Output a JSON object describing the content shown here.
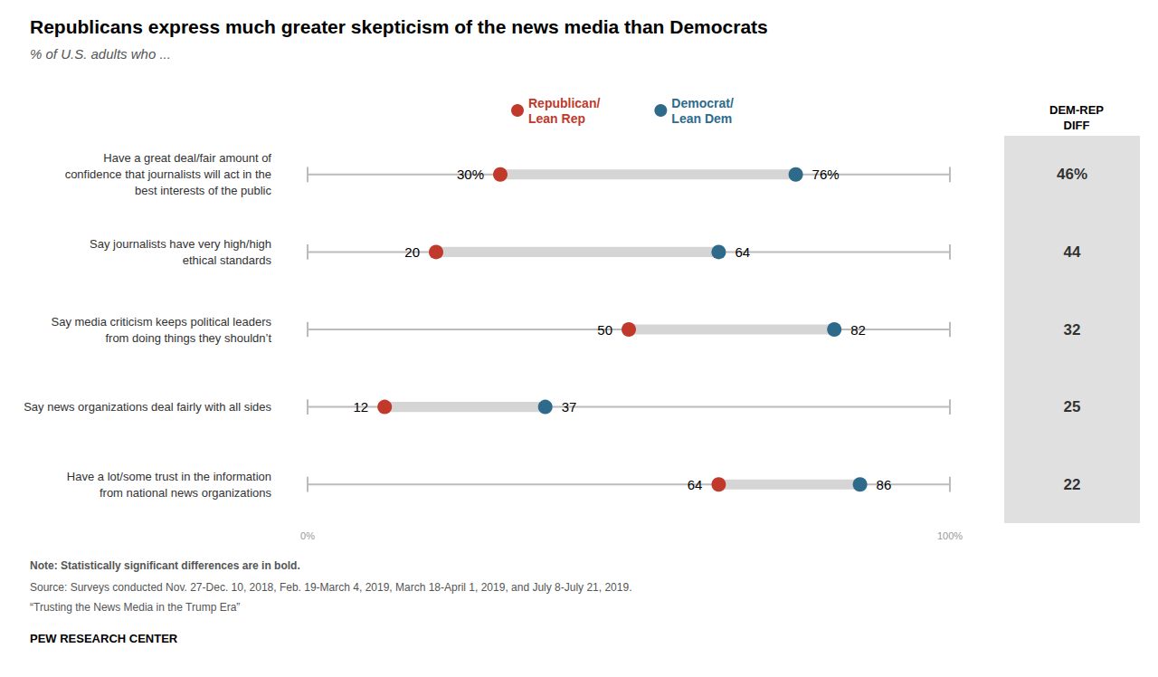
{
  "chart_data": {
    "type": "dumbbell",
    "orientation": "horizontal",
    "title": "Republicans express much greater skepticism of the news media than Democrats",
    "subtitle": "% of U.S. adults who ...",
    "categories": [
      "Have a great deal/fair amount of\nconfidence that journalists will act in the\nbest interests of the public",
      "Say journalists have very high/high\nethical standards",
      "Say media criticism keeps political leaders\nfrom doing things they shouldn’t",
      "Say news organizations deal fairly with all sides",
      "Have a lot/some trust in the information\nfrom national news organizations"
    ],
    "series": [
      {
        "name": "Republican/\nLean Rep",
        "color": "#C0392B",
        "values": [
          30,
          20,
          50,
          12,
          64
        ],
        "value_labels": [
          "30%",
          "20",
          "50",
          "12",
          "64"
        ]
      },
      {
        "name": "Democrat/\nLean Dem",
        "color": "#2E6B8A",
        "values": [
          76,
          64,
          82,
          37,
          86
        ],
        "value_labels": [
          "76%",
          "64",
          "82",
          "37",
          "86"
        ]
      }
    ],
    "diff_title": "DEM-REP\nDIFF",
    "diff": [
      46,
      44,
      32,
      25,
      22
    ],
    "diff_labels": [
      "46%",
      "44",
      "32",
      "25",
      "22"
    ],
    "xlim": [
      0,
      100
    ],
    "xticks": [
      {
        "value": 0,
        "label": "0%"
      },
      {
        "value": 100,
        "label": "100%"
      }
    ],
    "data_labels": true,
    "grid": false,
    "legend": "top",
    "note": [
      "Note: Statistically significant differences are in ",
      "bold."
    ],
    "source": "Source: Surveys conducted Nov. 27-Dec. 10, 2018, Feb. 19-March 4, 2019, March 18-April 1, 2019, and July 8-July 21, 2019.",
    "report": "“Trusting the News Media in the Trump Era”",
    "credit": "PEW RESEARCH CENTER"
  }
}
